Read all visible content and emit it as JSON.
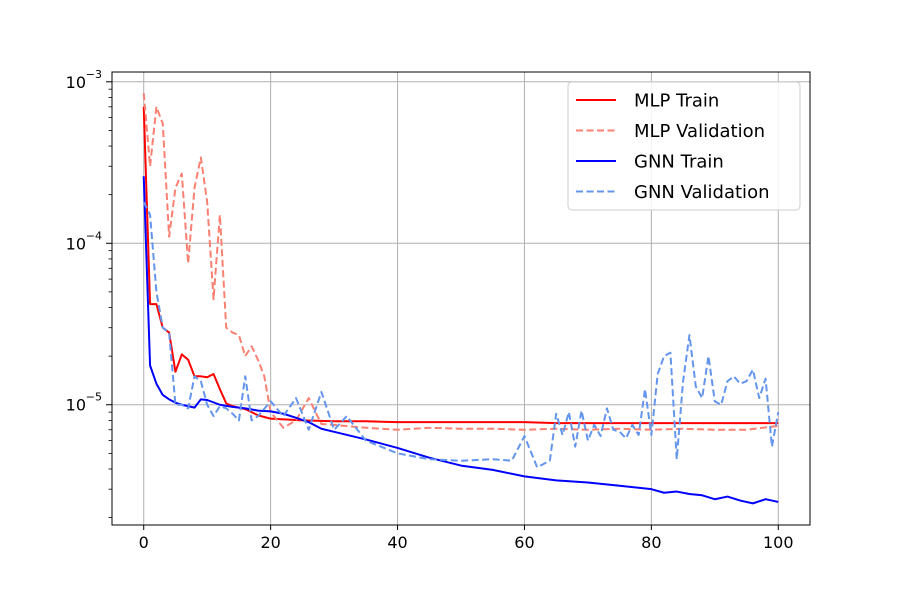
{
  "chart_data": {
    "type": "line",
    "title": "",
    "xlabel": "",
    "ylabel": "",
    "xscale": "linear",
    "yscale": "log",
    "xlim": [
      -5,
      105
    ],
    "ylim": [
      1.8e-06,
      0.00115
    ],
    "grid": true,
    "legend_position": "top-right",
    "x_ticks": [
      {
        "value": 0,
        "label": "0"
      },
      {
        "value": 20,
        "label": "20"
      },
      {
        "value": 40,
        "label": "40"
      },
      {
        "value": 60,
        "label": "60"
      },
      {
        "value": 80,
        "label": "80"
      },
      {
        "value": 100,
        "label": "100"
      }
    ],
    "y_ticks": [
      {
        "value": 1e-05,
        "base": "10",
        "exponent": "−5"
      },
      {
        "value": 0.0001,
        "base": "10",
        "exponent": "−4"
      },
      {
        "value": 0.001,
        "base": "10",
        "exponent": "−3"
      }
    ],
    "series": [
      {
        "name": "MLP Train",
        "color": "#ff0000",
        "dash": "solid",
        "x": [
          0,
          1,
          2,
          3,
          4,
          5,
          6,
          7,
          8,
          9,
          10,
          11,
          12,
          13,
          14,
          15,
          16,
          17,
          18,
          19,
          20,
          25,
          30,
          35,
          40,
          45,
          50,
          55,
          60,
          65,
          70,
          75,
          80,
          85,
          90,
          95,
          100
        ],
        "y": [
          0.0007,
          4.2e-05,
          4.2e-05,
          3e-05,
          2.8e-05,
          1.6e-05,
          2.05e-05,
          1.9e-05,
          1.5e-05,
          1.5e-05,
          1.48e-05,
          1.55e-05,
          1.25e-05,
          1.02e-05,
          9.8e-06,
          9.6e-06,
          9.4e-06,
          9e-06,
          8.6e-06,
          8.4e-06,
          8.2e-06,
          8e-06,
          7.9e-06,
          7.9e-06,
          7.8e-06,
          7.8e-06,
          7.8e-06,
          7.8e-06,
          7.8e-06,
          7.7e-06,
          7.7e-06,
          7.7e-06,
          7.7e-06,
          7.7e-06,
          7.7e-06,
          7.7e-06,
          7.7e-06
        ]
      },
      {
        "name": "MLP Validation",
        "color": "#fa8072",
        "dash": "dashed",
        "x": [
          0,
          1,
          2,
          3,
          4,
          5,
          6,
          7,
          8,
          9,
          10,
          11,
          12,
          13,
          14,
          15,
          16,
          17,
          18,
          19,
          20,
          22,
          24,
          26,
          28,
          30,
          35,
          40,
          45,
          50,
          55,
          60,
          65,
          70,
          75,
          80,
          85,
          90,
          95,
          100
        ],
        "y": [
          0.00085,
          0.0003,
          0.0007,
          0.00055,
          0.00011,
          0.00022,
          0.00027,
          7.5e-05,
          0.00022,
          0.00034,
          0.00018,
          4.5e-05,
          0.00015,
          3e-05,
          2.8e-05,
          2.7e-05,
          2e-05,
          2.3e-05,
          1.9e-05,
          1.5e-05,
          9e-06,
          7.2e-06,
          8e-06,
          1.1e-05,
          7.6e-06,
          7.5e-06,
          7.2e-06,
          7e-06,
          7.2e-06,
          7.1e-06,
          7.1e-06,
          7e-06,
          7.1e-06,
          7e-06,
          7.1e-06,
          7e-06,
          7.1e-06,
          7e-06,
          7e-06,
          7.4e-06
        ]
      },
      {
        "name": "GNN Train",
        "color": "#0000ff",
        "dash": "solid",
        "x": [
          0,
          1,
          2,
          3,
          4,
          5,
          6,
          7,
          8,
          9,
          10,
          12,
          14,
          16,
          18,
          20,
          22,
          24,
          26,
          28,
          30,
          35,
          40,
          45,
          50,
          55,
          60,
          65,
          70,
          75,
          80,
          82,
          84,
          86,
          88,
          90,
          92,
          94,
          96,
          98,
          100
        ],
        "y": [
          0.00026,
          1.75e-05,
          1.35e-05,
          1.15e-05,
          1.08e-05,
          1.03e-05,
          1e-05,
          9.8e-06,
          9.6e-06,
          1.08e-05,
          1.07e-05,
          1e-05,
          9.7e-06,
          9.5e-06,
          9.2e-06,
          9.1e-06,
          8.8e-06,
          8.3e-06,
          7.8e-06,
          7.1e-06,
          6.8e-06,
          6.1e-06,
          5.4e-06,
          4.7e-06,
          4.2e-06,
          3.95e-06,
          3.6e-06,
          3.4e-06,
          3.3e-06,
          3.15e-06,
          3e-06,
          2.85e-06,
          2.9e-06,
          2.8e-06,
          2.75e-06,
          2.6e-06,
          2.7e-06,
          2.55e-06,
          2.45e-06,
          2.6e-06,
          2.5e-06
        ]
      },
      {
        "name": "GNN Validation",
        "color": "#6495ed",
        "dash": "dashed",
        "x": [
          0,
          1,
          2,
          3,
          4,
          5,
          6,
          7,
          8,
          9,
          10,
          11,
          12,
          13,
          14,
          15,
          16,
          17,
          18,
          20,
          22,
          24,
          26,
          28,
          30,
          32,
          35,
          40,
          45,
          50,
          55,
          58,
          60,
          62,
          64,
          65,
          66,
          67,
          68,
          69,
          70,
          71,
          72,
          73,
          74,
          75,
          76,
          77,
          78,
          79,
          80,
          81,
          82,
          83,
          84,
          85,
          86,
          87,
          88,
          89,
          90,
          91,
          92,
          93,
          94,
          95,
          96,
          97,
          98,
          99,
          100
        ],
        "y": [
          0.00018,
          0.00015,
          5e-05,
          3e-05,
          2.8e-05,
          1e-05,
          1e-05,
          9.5e-06,
          1.5e-05,
          1.4e-05,
          1e-05,
          8.5e-06,
          9.8e-06,
          9.5e-06,
          8.8e-06,
          8e-06,
          1.5e-05,
          8e-06,
          8.5e-06,
          1.05e-05,
          8.5e-06,
          1.1e-05,
          7e-06,
          1.2e-05,
          7e-06,
          8.5e-06,
          6e-06,
          5e-06,
          4.6e-06,
          4.5e-06,
          4.6e-06,
          4.5e-06,
          6.4e-06,
          4.1e-06,
          4.5e-06,
          8.8e-06,
          6.5e-06,
          9e-06,
          5.5e-06,
          9.2e-06,
          6e-06,
          7.5e-06,
          6.4e-06,
          9.5e-06,
          7e-06,
          6.8e-06,
          6.2e-06,
          7.5e-06,
          6.5e-06,
          1.25e-05,
          6.5e-06,
          1.55e-05,
          2e-05,
          2.1e-05,
          4.6e-06,
          1.4e-05,
          2.7e-05,
          1.3e-05,
          1.1e-05,
          2e-05,
          1.05e-05,
          1e-05,
          1.4e-05,
          1.5e-05,
          1.35e-05,
          1.4e-05,
          1.65e-05,
          1.1e-05,
          1.45e-05,
          5.5e-06,
          9e-06
        ]
      }
    ]
  }
}
